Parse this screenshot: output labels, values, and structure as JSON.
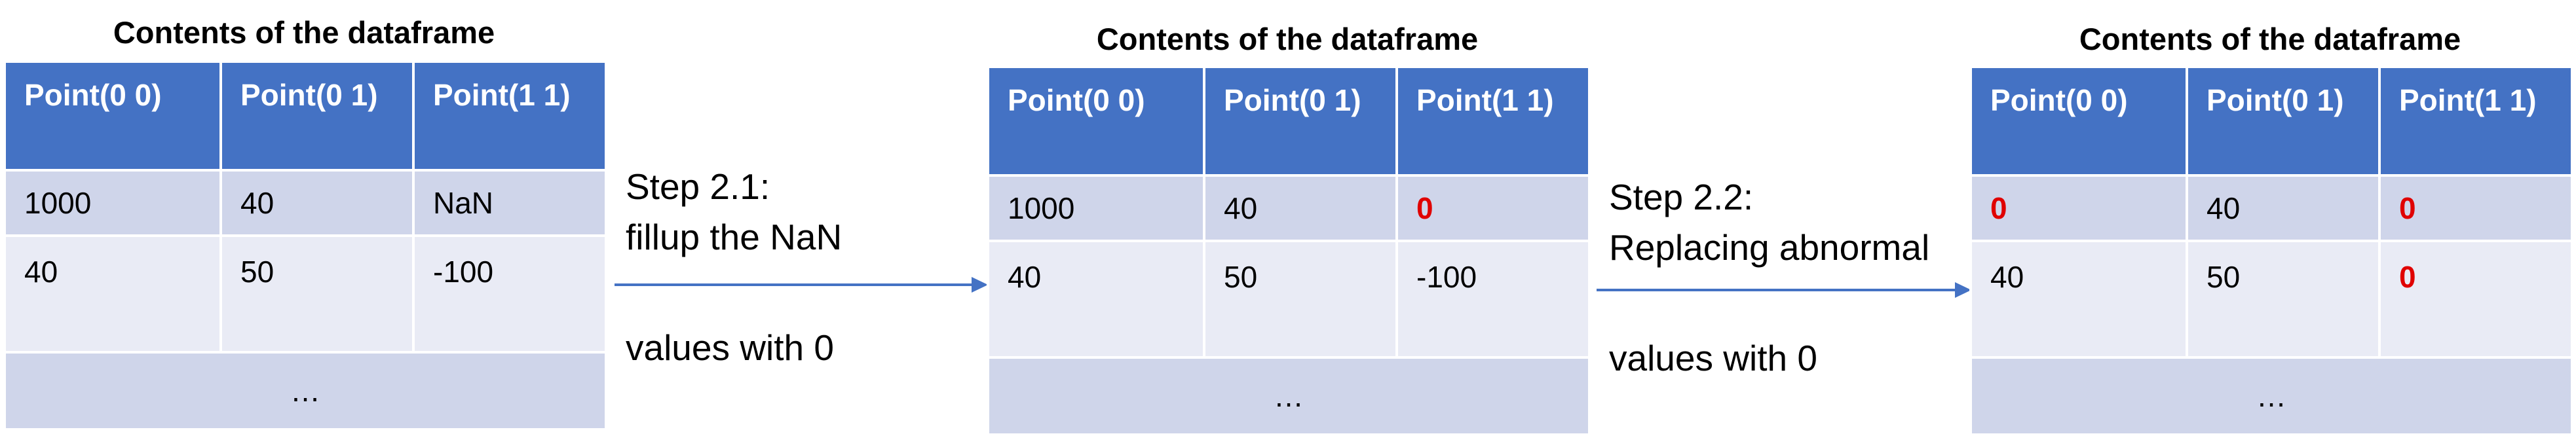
{
  "panels": [
    {
      "title": "Contents of the dataframe",
      "headers": [
        "Point(0 0)",
        "Point(0 1)",
        "Point(1 1)"
      ],
      "rows": [
        [
          "1000",
          "40",
          "NaN"
        ],
        [
          "40",
          "50",
          "-100"
        ]
      ],
      "ellipsis": "…"
    },
    {
      "title": "Contents of the dataframe",
      "headers": [
        "Point(0 0)",
        "Point(0 1)",
        "Point(1 1)"
      ],
      "rows": [
        [
          "1000",
          "40",
          "0"
        ],
        [
          "40",
          "50",
          "-100"
        ]
      ],
      "ellipsis": "…"
    },
    {
      "title": "Contents of the dataframe",
      "headers": [
        "Point(0 0)",
        "Point(0 1)",
        "Point(1 1)"
      ],
      "rows": [
        [
          "0",
          "40",
          "0"
        ],
        [
          "40",
          "50",
          "0"
        ]
      ],
      "ellipsis": "…"
    }
  ],
  "steps": [
    {
      "line1": "Step 2.1:",
      "line2": "fillup the NaN",
      "line3": "values with 0"
    },
    {
      "line1": "Step 2.2:",
      "line2": "Replacing abnormal",
      "line3": "values with 0"
    }
  ],
  "colors": {
    "header_bg": "#4472C4",
    "row_dark": "#CFD5EA",
    "row_light": "#E9EBF5",
    "arrow": "#4472C4",
    "highlight": "#E00000"
  }
}
